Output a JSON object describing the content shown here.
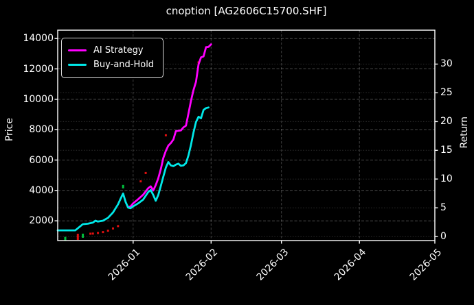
{
  "title": "cnoption [AG2606C15700.SHF]",
  "axis_labels": {
    "left": "Price",
    "right": "Return"
  },
  "legend": {
    "items": [
      {
        "label": "AI Strategy",
        "color": "#ff00ff"
      },
      {
        "label": "Buy-and-Hold",
        "color": "#00e8e8"
      }
    ]
  },
  "chart_data": {
    "type": "line",
    "title": "cnoption [AG2606C15700.SHF]",
    "background": "#000000",
    "x_domain": [
      "2025-12-02",
      "2026-05-01"
    ],
    "x_ticks": [
      "2026-01",
      "2026-02",
      "2026-03",
      "2026-04",
      "2026-05"
    ],
    "ylabel_left": "Price",
    "ylabel_right": "Return",
    "ylim_price": [
      700,
      14550
    ],
    "ylim_return": [
      -0.7,
      35.9
    ],
    "y_ticks_price": [
      2000,
      4000,
      6000,
      8000,
      10000,
      12000,
      14000
    ],
    "y_ticks_return": [
      0,
      5,
      10,
      15,
      20,
      25,
      30
    ],
    "grid": true,
    "legend_position": "upper-left",
    "series": [
      {
        "name": "AI Strategy",
        "color": "#ff00ff",
        "yaxis": "left",
        "points": [
          [
            "2025-12-30",
            2900
          ],
          [
            "2025-12-31",
            2950
          ],
          [
            "2026-01-01",
            3150
          ],
          [
            "2026-01-03",
            3420
          ],
          [
            "2026-01-05",
            3720
          ],
          [
            "2026-01-07",
            4150
          ],
          [
            "2026-01-08",
            4270
          ],
          [
            "2026-01-09",
            4000
          ],
          [
            "2026-01-10",
            4350
          ],
          [
            "2026-01-11",
            4800
          ],
          [
            "2026-01-12",
            5400
          ],
          [
            "2026-01-13",
            6130
          ],
          [
            "2026-01-14",
            6600
          ],
          [
            "2026-01-15",
            6950
          ],
          [
            "2026-01-16",
            7120
          ],
          [
            "2026-01-17",
            7350
          ],
          [
            "2026-01-18",
            7900
          ],
          [
            "2026-01-20",
            7950
          ],
          [
            "2026-01-21",
            8150
          ],
          [
            "2026-01-22",
            8260
          ],
          [
            "2026-01-23",
            9050
          ],
          [
            "2026-01-24",
            9900
          ],
          [
            "2026-01-25",
            10600
          ],
          [
            "2026-01-26",
            11150
          ],
          [
            "2026-01-27",
            12300
          ],
          [
            "2026-01-28",
            12760
          ],
          [
            "2026-01-29",
            12820
          ],
          [
            "2026-01-30",
            13430
          ],
          [
            "2026-01-31",
            13450
          ],
          [
            "2026-02-01",
            13620
          ]
        ]
      },
      {
        "name": "Buy-and-Hold",
        "color": "#00e8e8",
        "yaxis": "left",
        "points": [
          [
            "2025-12-02",
            1370
          ],
          [
            "2025-12-09",
            1370
          ],
          [
            "2025-12-12",
            1780
          ],
          [
            "2025-12-14",
            1810
          ],
          [
            "2025-12-16",
            1880
          ],
          [
            "2025-12-17",
            2010
          ],
          [
            "2025-12-18",
            1950
          ],
          [
            "2025-12-20",
            2010
          ],
          [
            "2025-12-22",
            2200
          ],
          [
            "2025-12-24",
            2550
          ],
          [
            "2025-12-26",
            3080
          ],
          [
            "2025-12-27",
            3450
          ],
          [
            "2025-12-28",
            3800
          ],
          [
            "2025-12-29",
            3250
          ],
          [
            "2025-12-30",
            2870
          ],
          [
            "2025-12-31",
            2830
          ],
          [
            "2026-01-01",
            2950
          ],
          [
            "2026-01-03",
            3150
          ],
          [
            "2026-01-05",
            3400
          ],
          [
            "2026-01-07",
            3900
          ],
          [
            "2026-01-08",
            4020
          ],
          [
            "2026-01-09",
            3700
          ],
          [
            "2026-01-10",
            3320
          ],
          [
            "2026-01-11",
            3700
          ],
          [
            "2026-01-12",
            4300
          ],
          [
            "2026-01-13",
            4900
          ],
          [
            "2026-01-14",
            5500
          ],
          [
            "2026-01-15",
            5870
          ],
          [
            "2026-01-16",
            5650
          ],
          [
            "2026-01-17",
            5600
          ],
          [
            "2026-01-18",
            5700
          ],
          [
            "2026-01-19",
            5760
          ],
          [
            "2026-01-20",
            5620
          ],
          [
            "2026-01-21",
            5650
          ],
          [
            "2026-01-22",
            5800
          ],
          [
            "2026-01-23",
            6300
          ],
          [
            "2026-01-24",
            7000
          ],
          [
            "2026-01-25",
            7800
          ],
          [
            "2026-01-26",
            8500
          ],
          [
            "2026-01-27",
            8850
          ],
          [
            "2026-01-28",
            8750
          ],
          [
            "2026-01-29",
            9300
          ],
          [
            "2026-01-30",
            9420
          ],
          [
            "2026-01-31",
            9460
          ]
        ]
      }
    ],
    "markers": [
      {
        "date": "2025-12-05",
        "price": 830,
        "color": "green",
        "h": 5
      },
      {
        "date": "2025-12-10",
        "price": 950,
        "color": "red",
        "h": 9
      },
      {
        "date": "2025-12-12",
        "price": 1020,
        "color": "green",
        "h": 6
      },
      {
        "date": "2025-12-15",
        "price": 1150,
        "color": "red",
        "h": 3
      },
      {
        "date": "2025-12-16",
        "price": 1160,
        "color": "red",
        "h": 3
      },
      {
        "date": "2025-12-18",
        "price": 1200,
        "color": "red",
        "h": 3
      },
      {
        "date": "2025-12-20",
        "price": 1260,
        "color": "red",
        "h": 3
      },
      {
        "date": "2025-12-22",
        "price": 1350,
        "color": "red",
        "h": 3
      },
      {
        "date": "2025-12-24",
        "price": 1500,
        "color": "red",
        "h": 3
      },
      {
        "date": "2025-12-26",
        "price": 1650,
        "color": "red",
        "h": 3
      },
      {
        "date": "2025-12-28",
        "price": 4250,
        "color": "green",
        "h": 5
      },
      {
        "date": "2026-01-04",
        "price": 4600,
        "color": "red",
        "h": 3
      },
      {
        "date": "2026-01-06",
        "price": 5150,
        "color": "red",
        "h": 3
      },
      {
        "date": "2026-01-14",
        "price": 7630,
        "color": "red",
        "h": 3
      },
      {
        "date": "2026-01-27",
        "price": 12430,
        "color": "red",
        "h": 3
      }
    ],
    "marker_colors": {
      "red": "#e01010",
      "green": "#00c03c"
    }
  }
}
